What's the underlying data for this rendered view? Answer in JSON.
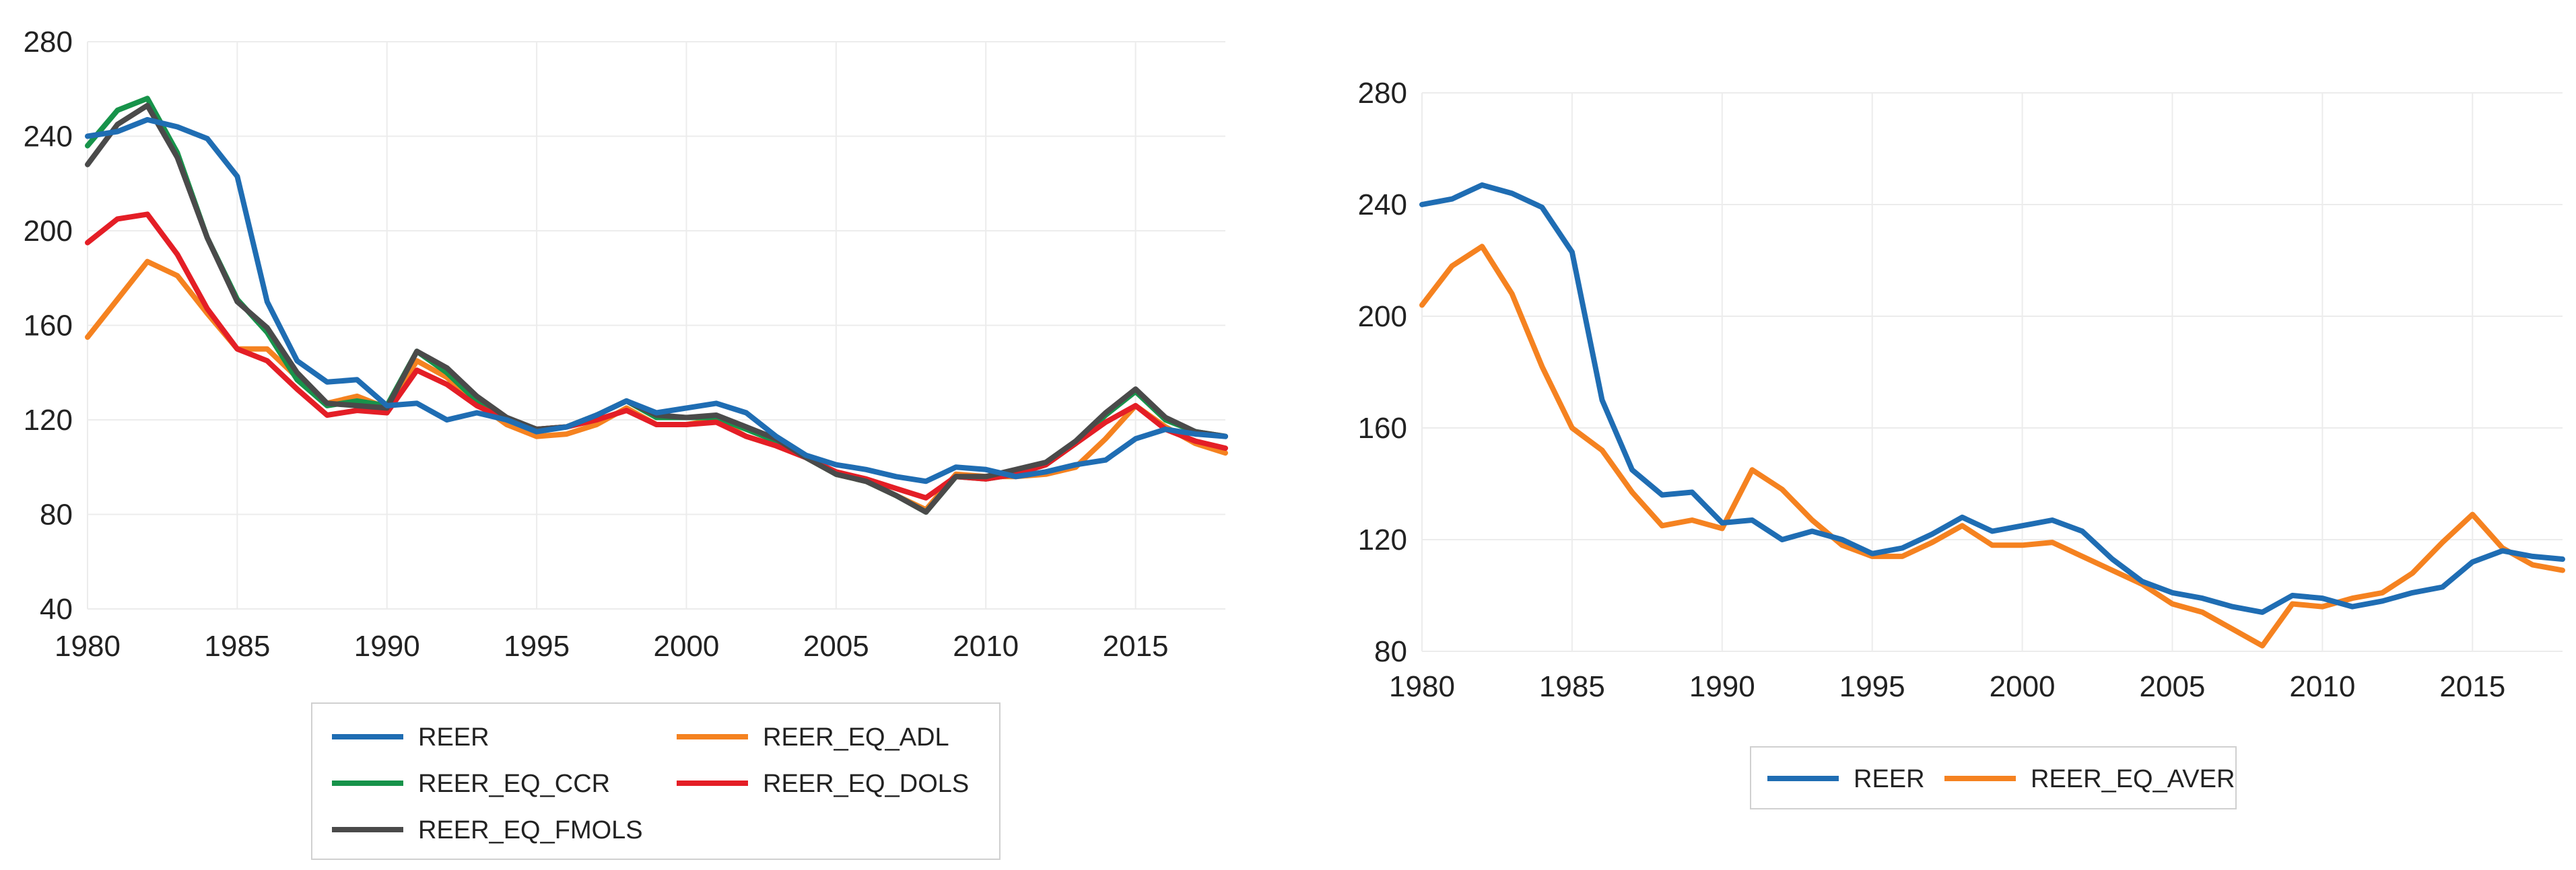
{
  "chart_data": [
    {
      "type": "line",
      "title": "",
      "xlabel": "",
      "ylabel": "",
      "xlim": [
        1980,
        2018
      ],
      "ylim": [
        40,
        280
      ],
      "yticks": [
        40,
        80,
        120,
        160,
        200,
        240,
        280
      ],
      "xticks": [
        1980,
        1985,
        1990,
        1995,
        2000,
        2005,
        2010,
        2015
      ],
      "grid": true,
      "legend_position": "bottom",
      "x": [
        1980,
        1981,
        1982,
        1983,
        1984,
        1985,
        1986,
        1987,
        1988,
        1989,
        1990,
        1991,
        1992,
        1993,
        1994,
        1995,
        1996,
        1997,
        1998,
        1999,
        2000,
        2001,
        2002,
        2003,
        2004,
        2005,
        2006,
        2007,
        2008,
        2009,
        2010,
        2011,
        2012,
        2013,
        2014,
        2015,
        2016,
        2017,
        2018
      ],
      "series": [
        {
          "name": "REER",
          "color": "#1f6db3",
          "values": [
            240,
            242,
            247,
            244,
            239,
            223,
            170,
            145,
            136,
            137,
            126,
            127,
            120,
            123,
            120,
            115,
            117,
            122,
            128,
            123,
            125,
            127,
            123,
            113,
            105,
            101,
            99,
            96,
            94,
            100,
            99,
            96,
            98,
            101,
            103,
            112,
            116,
            114,
            113
          ]
        },
        {
          "name": "REER_EQ_ADL",
          "color": "#f58220",
          "values": [
            155,
            171,
            187,
            181,
            165,
            150,
            150,
            138,
            127,
            130,
            125,
            145,
            138,
            127,
            118,
            113,
            114,
            118,
            125,
            118,
            118,
            120,
            113,
            109,
            104,
            97,
            94,
            88,
            82,
            97,
            96,
            96,
            97,
            100,
            112,
            126,
            117,
            110,
            106
          ]
        },
        {
          "name": "REER_EQ_CCR",
          "color": "#17934a",
          "values": [
            236,
            251,
            256,
            233,
            197,
            171,
            157,
            137,
            126,
            128,
            126,
            149,
            140,
            128,
            120,
            116,
            117,
            122,
            128,
            121,
            121,
            121,
            116,
            111,
            104,
            97,
            94,
            88,
            81,
            96,
            95,
            97,
            101,
            110,
            122,
            132,
            120,
            115,
            113
          ]
        },
        {
          "name": "REER_EQ_DOLS",
          "color": "#e41e26",
          "values": [
            195,
            205,
            207,
            190,
            167,
            150,
            145,
            133,
            122,
            124,
            123,
            141,
            135,
            126,
            120,
            116,
            117,
            120,
            124,
            118,
            118,
            119,
            113,
            109,
            104,
            98,
            95,
            91,
            87,
            96,
            95,
            97,
            101,
            110,
            119,
            126,
            116,
            111,
            108
          ]
        },
        {
          "name": "REER_EQ_FMOLS",
          "color": "#4a4a4a",
          "values": [
            228,
            245,
            253,
            231,
            197,
            170,
            159,
            140,
            127,
            126,
            125,
            149,
            142,
            130,
            121,
            116,
            117,
            122,
            128,
            122,
            121,
            122,
            117,
            112,
            104,
            97,
            94,
            88,
            81,
            96,
            96,
            99,
            102,
            111,
            123,
            133,
            121,
            115,
            113
          ]
        }
      ]
    },
    {
      "type": "line",
      "title": "",
      "xlabel": "",
      "ylabel": "",
      "xlim": [
        1980,
        2018
      ],
      "ylim": [
        80,
        280
      ],
      "yticks": [
        80,
        120,
        160,
        200,
        240,
        280
      ],
      "xticks": [
        1980,
        1985,
        1990,
        1995,
        2000,
        2005,
        2010,
        2015
      ],
      "grid": true,
      "legend_position": "bottom",
      "x": [
        1980,
        1981,
        1982,
        1983,
        1984,
        1985,
        1986,
        1987,
        1988,
        1989,
        1990,
        1991,
        1992,
        1993,
        1994,
        1995,
        1996,
        1997,
        1998,
        1999,
        2000,
        2001,
        2002,
        2003,
        2004,
        2005,
        2006,
        2007,
        2008,
        2009,
        2010,
        2011,
        2012,
        2013,
        2014,
        2015,
        2016,
        2017,
        2018
      ],
      "series": [
        {
          "name": "REER",
          "color": "#1f6db3",
          "values": [
            240,
            242,
            247,
            244,
            239,
            223,
            170,
            145,
            136,
            137,
            126,
            127,
            120,
            123,
            120,
            115,
            117,
            122,
            128,
            123,
            125,
            127,
            123,
            113,
            105,
            101,
            99,
            96,
            94,
            100,
            99,
            96,
            98,
            101,
            103,
            112,
            116,
            114,
            113
          ]
        },
        {
          "name": "REER_EQ_AVER",
          "color": "#f58220",
          "values": [
            204,
            218,
            225,
            208,
            182,
            160,
            152,
            137,
            125,
            127,
            124,
            145,
            138,
            127,
            118,
            114,
            114,
            119,
            125,
            118,
            118,
            119,
            114,
            109,
            104,
            97,
            94,
            88,
            82,
            97,
            96,
            99,
            101,
            108,
            119,
            129,
            117,
            111,
            109
          ]
        }
      ]
    }
  ]
}
